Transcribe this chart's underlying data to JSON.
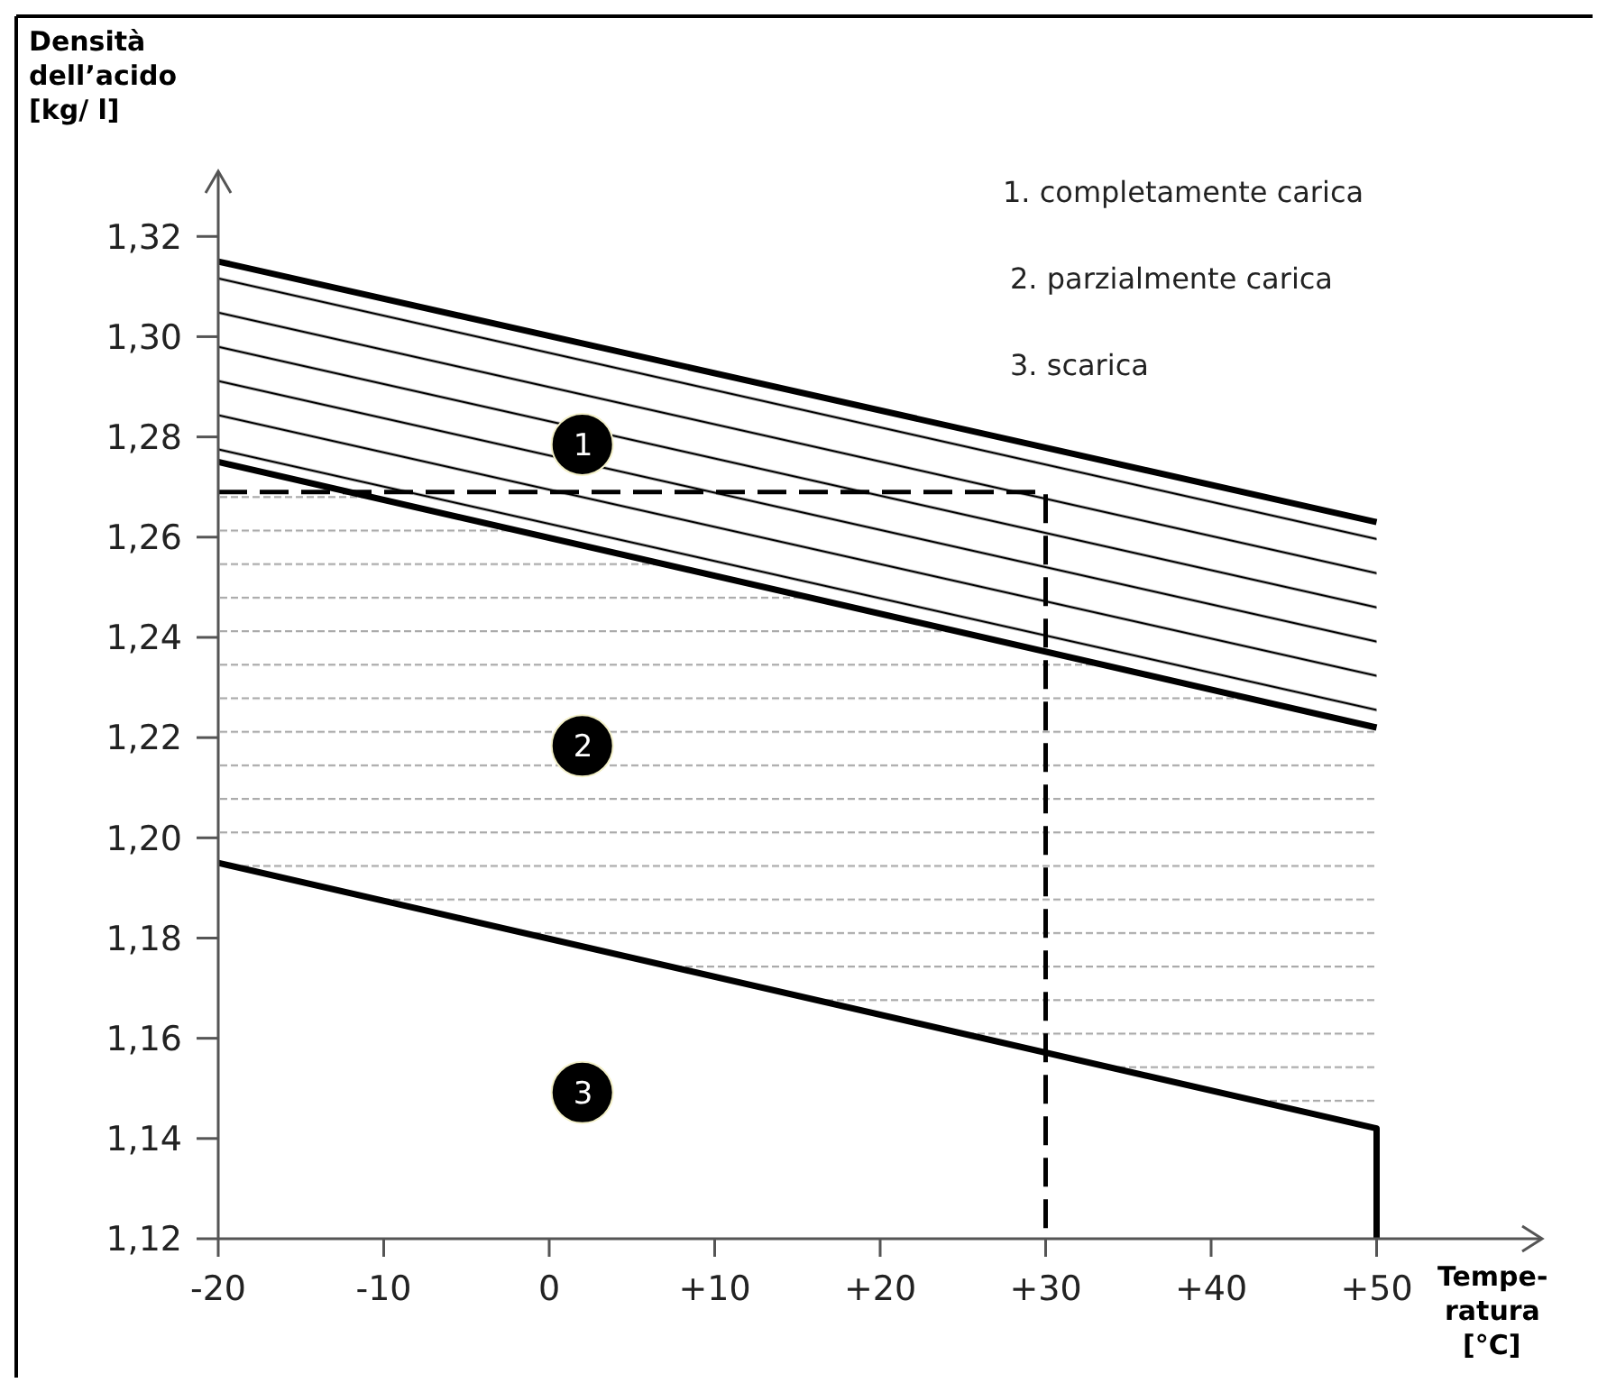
{
  "chart_data": {
    "type": "line",
    "ylabel": "Densità dell’acido [kg/ l]",
    "xlabel": "Tempe-ratura [°C]",
    "xlim": [
      -20,
      60
    ],
    "xticks": [
      -20,
      -10,
      0,
      {
        "value": 10,
        "label": "+10"
      },
      {
        "value": 20,
        "label": "+20"
      },
      {
        "value": 30,
        "label": "+30"
      },
      {
        "value": 40,
        "label": "+40"
      },
      {
        "value": 50,
        "label": "+50"
      }
    ],
    "ylim": [
      1.12,
      1.333
    ],
    "yticks": [
      {
        "value": 1.12,
        "label": "1,12"
      },
      {
        "value": 1.14,
        "label": "1,14"
      },
      {
        "value": 1.16,
        "label": "1,16"
      },
      {
        "value": 1.18,
        "label": "1,18"
      },
      {
        "value": 1.2,
        "label": "1,20"
      },
      {
        "value": 1.22,
        "label": "1,22"
      },
      {
        "value": 1.24,
        "label": "1,24"
      },
      {
        "value": 1.26,
        "label": "1,26"
      },
      {
        "value": 1.28,
        "label": "1,28"
      },
      {
        "value": 1.3,
        "label": "1,30"
      },
      {
        "value": 1.32,
        "label": "1,32"
      }
    ],
    "grid": false,
    "marker": "none",
    "line_style": "solid",
    "series": [
      {
        "color": "#000000",
        "x": [
          -20,
          50
        ],
        "values": [
          1.315,
          1.263
        ],
        "upper": [
          1.315,
          1.263
        ],
        "lower": [
          1.275,
          1.222
        ]
      },
      {
        "color": "#000000",
        "x": [
          -20,
          50
        ],
        "values": [
          1.275,
          1.222
        ],
        "upper": [
          1.275,
          1.222
        ],
        "lower": [
          1.195,
          1.142
        ]
      },
      {
        "color": "#000000",
        "x": [
          -20,
          50,
          50
        ],
        "values": [
          1.195,
          1.142,
          1.12
        ]
      },
      {
        "color": "#000000",
        "x": [
          -20,
          30,
          30
        ],
        "values": [
          1.269,
          1.269,
          1.12
        ],
        "line_style": "dashed"
      }
    ],
    "annotations": [
      "1",
      "2",
      "3",
      "1. completamente carica",
      "2. parzialmente carica",
      "3. scarica"
    ]
  }
}
